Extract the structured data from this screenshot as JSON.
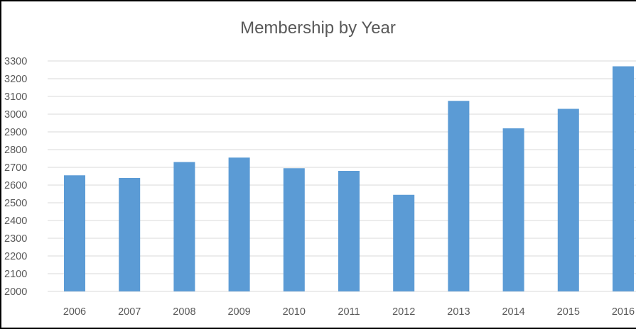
{
  "chart_data": {
    "type": "bar",
    "title": "Membership by Year",
    "xlabel": "",
    "ylabel": "",
    "categories": [
      "2006",
      "2007",
      "2008",
      "2009",
      "2010",
      "2011",
      "2012",
      "2013",
      "2014",
      "2015",
      "2016"
    ],
    "values": [
      2655,
      2640,
      2730,
      2755,
      2695,
      2680,
      2545,
      3075,
      2920,
      3030,
      3270
    ],
    "ylim": [
      2000,
      3300
    ],
    "yticks": [
      "2000",
      "2100",
      "2200",
      "2300",
      "2400",
      "2500",
      "2600",
      "2700",
      "2800",
      "2900",
      "3000",
      "3100",
      "3200",
      "3300"
    ],
    "grid": true,
    "legend": "none",
    "colors": {
      "bar": "#5B9BD5",
      "grid": "#D9D9D9",
      "text": "#595959",
      "border": "#000000"
    }
  }
}
